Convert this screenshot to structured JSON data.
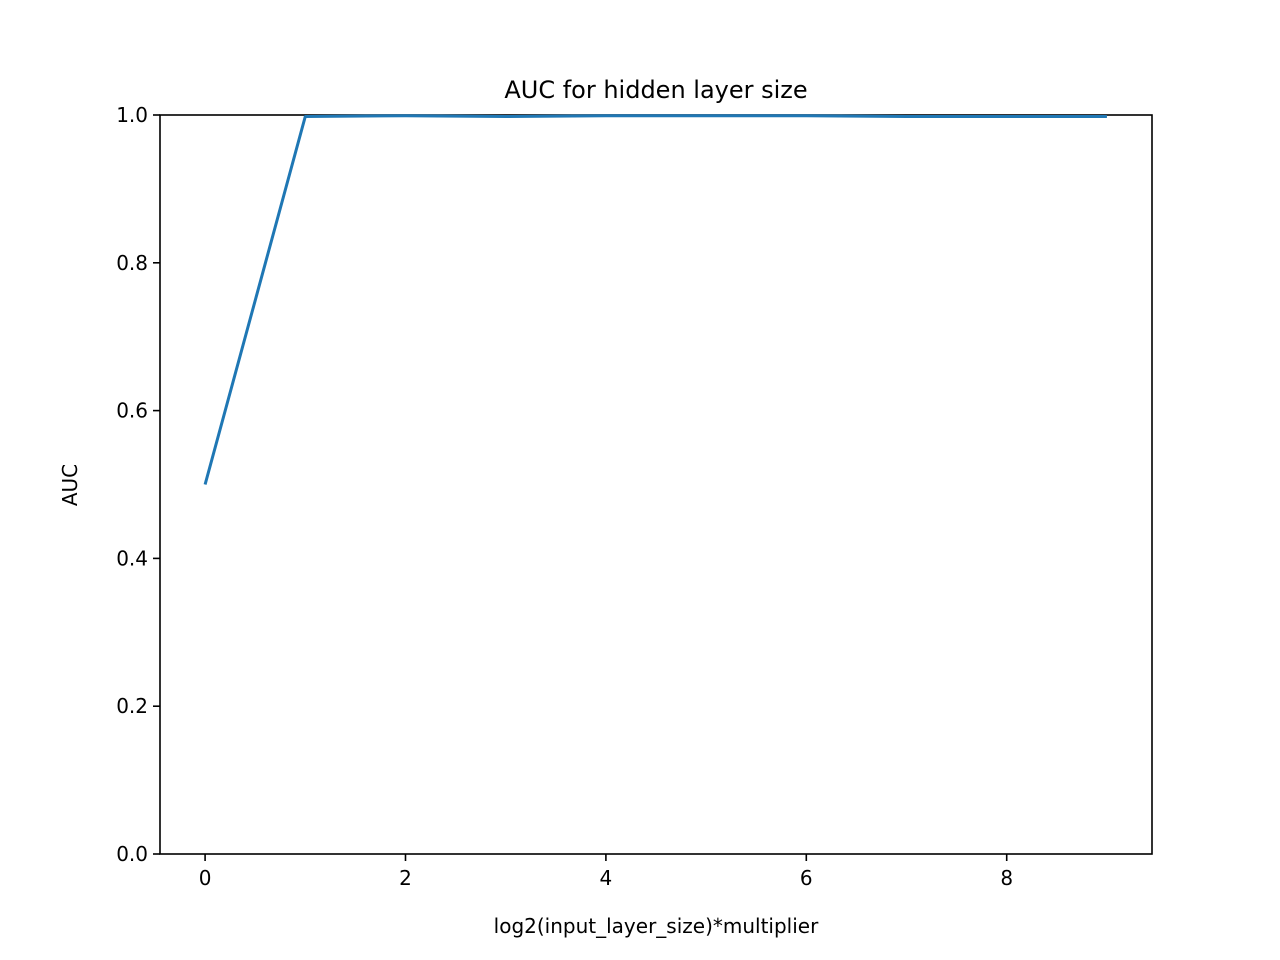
{
  "chart_data": {
    "type": "line",
    "title": "AUC for hidden layer size",
    "xlabel": "log2(input_layer_size)*multiplier",
    "ylabel": "AUC",
    "xlim": [
      -0.45,
      9.45
    ],
    "ylim": [
      0.0,
      1.0
    ],
    "xticks": [
      0,
      2,
      4,
      6,
      8
    ],
    "xtick_labels": [
      "0",
      "2",
      "4",
      "6",
      "8"
    ],
    "yticks": [
      0.0,
      0.2,
      0.4,
      0.6,
      0.8,
      1.0
    ],
    "ytick_labels": [
      "0.0",
      "0.2",
      "0.4",
      "0.6",
      "0.8",
      "1.0"
    ],
    "grid": false,
    "series": [
      {
        "color": "#1f77b4",
        "x": [
          0,
          1,
          2,
          3,
          4,
          5,
          6,
          7,
          8,
          9
        ],
        "y": [
          0.5,
          0.998,
          0.999,
          0.998,
          0.999,
          0.999,
          0.999,
          0.998,
          0.998,
          0.998
        ]
      }
    ]
  }
}
